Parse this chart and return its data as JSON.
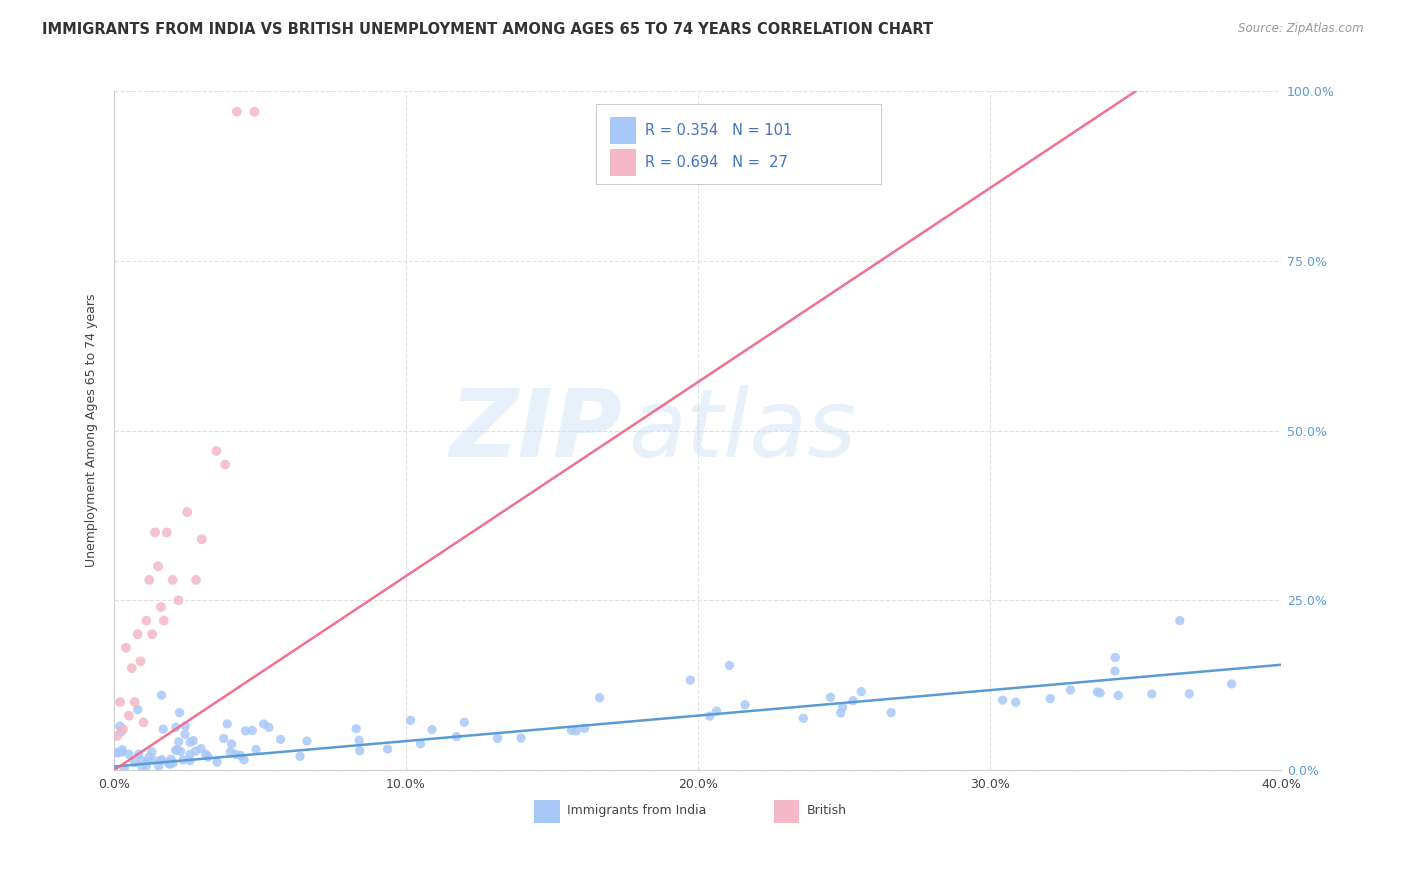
{
  "title": "IMMIGRANTS FROM INDIA VS BRITISH UNEMPLOYMENT AMONG AGES 65 TO 74 YEARS CORRELATION CHART",
  "source": "Source: ZipAtlas.com",
  "ylabel": "Unemployment Among Ages 65 to 74 years",
  "xlabel_ticks": [
    "0.0%",
    "10.0%",
    "20.0%",
    "30.0%",
    "40.0%"
  ],
  "ylabel_ticks": [
    "0.0%",
    "25.0%",
    "50.0%",
    "75.0%",
    "100.0%"
  ],
  "xlim": [
    0.0,
    0.4
  ],
  "ylim": [
    0.0,
    1.0
  ],
  "blue_R": 0.354,
  "blue_N": 101,
  "pink_R": 0.694,
  "pink_N": 27,
  "blue_color": "#a8c8f8",
  "pink_color": "#f4b8c8",
  "blue_line_color": "#5b9bd5",
  "pink_line_color": "#f07090",
  "legend_blue_label": "Immigrants from India",
  "legend_pink_label": "British",
  "watermark_zip": "ZIP",
  "watermark_atlas": "atlas",
  "background_color": "#ffffff",
  "grid_color": "#e0e0e0",
  "title_fontsize": 10.5,
  "axis_label_fontsize": 9,
  "tick_fontsize": 9,
  "blue_line_x": [
    0.0,
    0.4
  ],
  "blue_line_y": [
    0.005,
    0.155
  ],
  "pink_line_x": [
    0.0,
    0.35
  ],
  "pink_line_y": [
    0.0,
    1.0
  ]
}
